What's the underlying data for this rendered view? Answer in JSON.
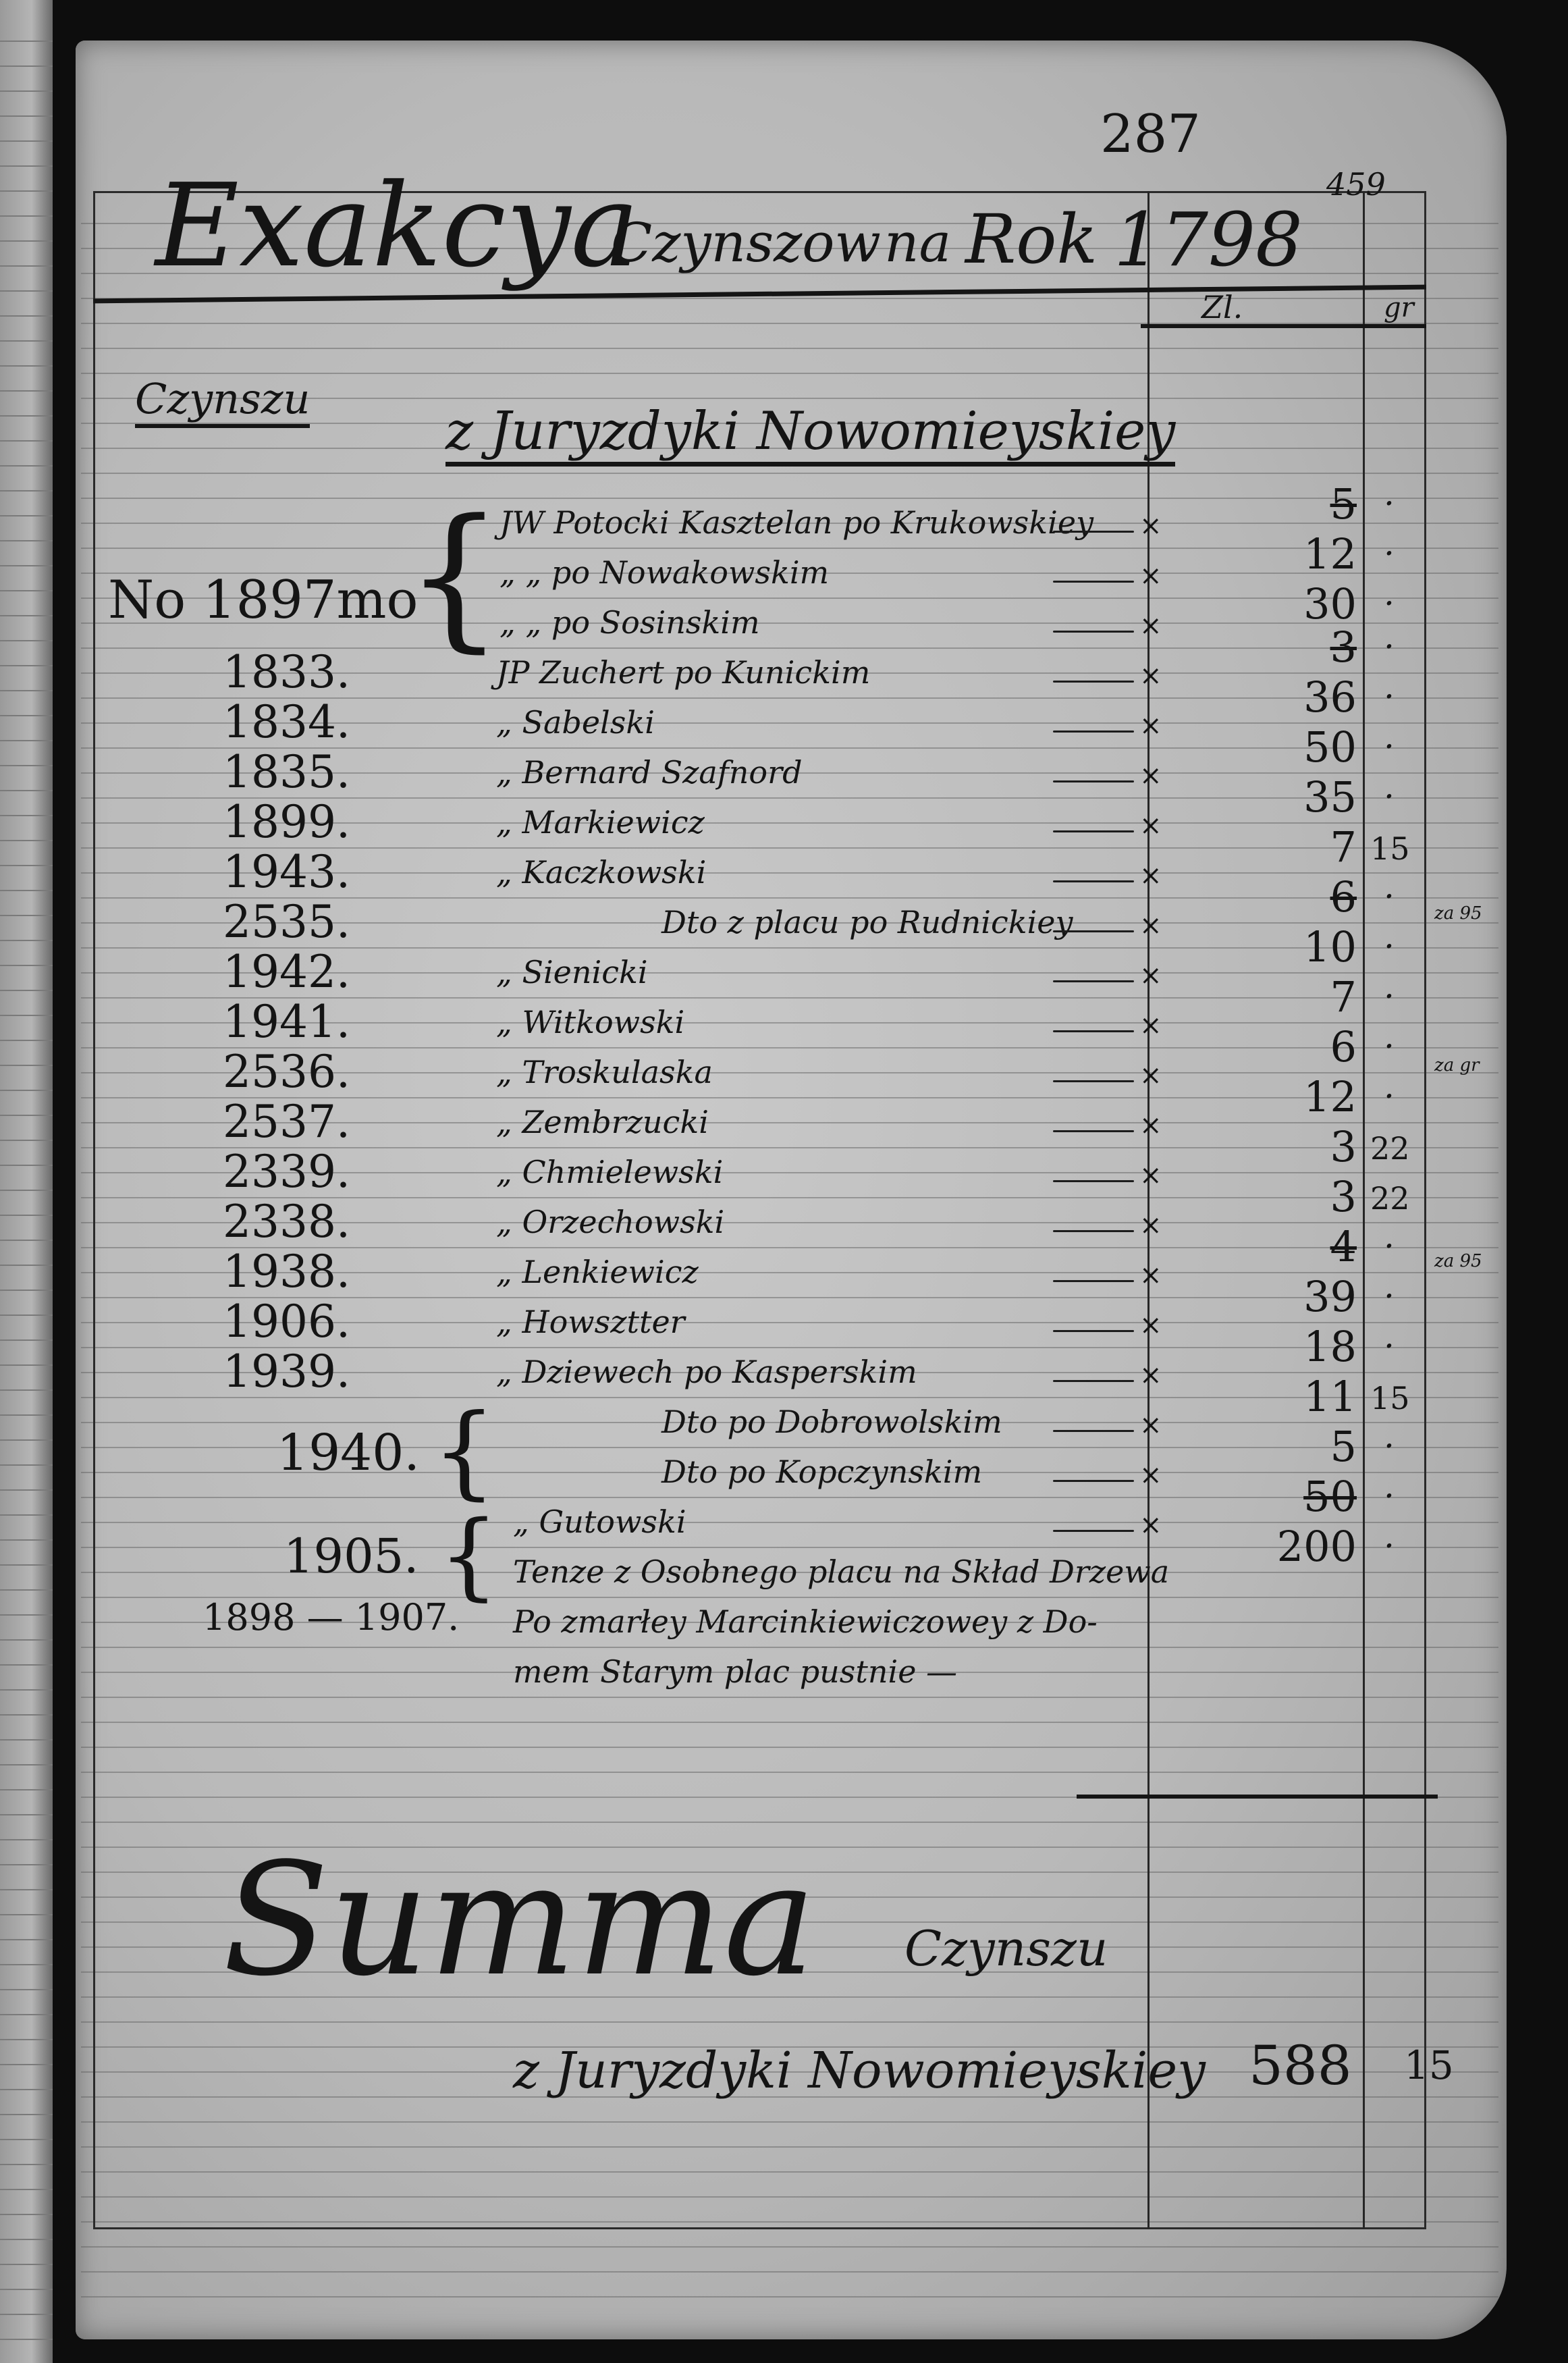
{
  "page_number": "287",
  "folio_number": "459",
  "title": {
    "word1": "Exakcya",
    "word2": "Czynszow",
    "word3": "na",
    "word4": "Rok",
    "year": "1798"
  },
  "column_headers": {
    "zl": "Zl.",
    "gr": "gr"
  },
  "section": {
    "left_heading": "Czynszu",
    "heading": "z Juryzdyki Nowomieyskiey"
  },
  "group_number": "No 1897mo",
  "rows": [
    {
      "number": "",
      "name": "JW Potocki Kasztelan po Krukowskiey",
      "zl": "5",
      "gr": "",
      "struck": true
    },
    {
      "number": "",
      "name": "„   „   po Nowakowskim",
      "zl": "12",
      "gr": ""
    },
    {
      "number": "",
      "name": "„   „   po Sosinskim",
      "zl": "30",
      "gr": ""
    },
    {
      "number": "1833.",
      "name": "JP Zuchert po Kunickim",
      "zl": "3",
      "gr": "",
      "struck": true
    },
    {
      "number": "1834.",
      "name": "„ Sabelski",
      "zl": "36",
      "gr": ""
    },
    {
      "number": "1835.",
      "name": "„ Bernard Szafnord",
      "zl": "50",
      "gr": ""
    },
    {
      "number": "1899.",
      "name": "„ Markiewicz",
      "zl": "35",
      "gr": ""
    },
    {
      "number": "1943.",
      "name": "„ Kaczkowski",
      "zl": "7",
      "gr": "15"
    },
    {
      "number": "2535.",
      "name": "Dto z placu po Rudnickiey",
      "zl": "6",
      "gr": "",
      "struck": true,
      "indent": true
    },
    {
      "number": "1942.",
      "name": "„ Sienicki",
      "zl": "10",
      "gr": ""
    },
    {
      "number": "1941.",
      "name": "„ Witkowski",
      "zl": "7",
      "gr": ""
    },
    {
      "number": "2536.",
      "name": "„ Troskulaska",
      "zl": "6",
      "gr": ""
    },
    {
      "number": "2537.",
      "name": "„ Zembrzucki",
      "zl": "12",
      "gr": ""
    },
    {
      "number": "2339.",
      "name": "„ Chmielewski",
      "zl": "3",
      "gr": "22"
    },
    {
      "number": "2338.",
      "name": "„ Orzechowski",
      "zl": "3",
      "gr": "22"
    },
    {
      "number": "1938.",
      "name": "„ Lenkiewicz",
      "zl": "4",
      "gr": "",
      "struck": true
    },
    {
      "number": "1906.",
      "name": "„ Howsztter",
      "zl": "39",
      "gr": ""
    },
    {
      "number": "1939.",
      "name": "„ Dziewech po Kasperskim",
      "zl": "18",
      "gr": ""
    },
    {
      "number": "",
      "name": "Dto po Dobrowolskim",
      "zl": "11",
      "gr": "15",
      "indent": true
    },
    {
      "number": "",
      "name": "Dto po Kopczynskim",
      "zl": "5",
      "gr": "",
      "indent": true
    },
    {
      "number": "",
      "name": "„ Gutowski",
      "zl": "50",
      "gr": "",
      "struck": true
    },
    {
      "number": "",
      "name": "Tenze z Osobnego placu na Skład Drzewa",
      "zl": "200",
      "gr": ""
    },
    {
      "number": "1898 — 1907.",
      "name": "Po zmarłey Marcinkiewiczowey z Do-"
    },
    {
      "number": "",
      "name": "mem Starym plac pustnie —"
    }
  ],
  "bracket_numbers": {
    "n1940": "1940.",
    "n1905": "1905."
  },
  "margin_notes": [
    "za 95",
    "za gr",
    "za 95"
  ],
  "summary": {
    "word1": "Summa",
    "word2": "Czynszu",
    "line2": "z Juryzdyki Nowomieyskiey",
    "zl": "588",
    "gr": "15"
  },
  "colors": {
    "paper": "#bdbdbd",
    "ink": "#141414",
    "scan_background": "#0d0d0d"
  }
}
